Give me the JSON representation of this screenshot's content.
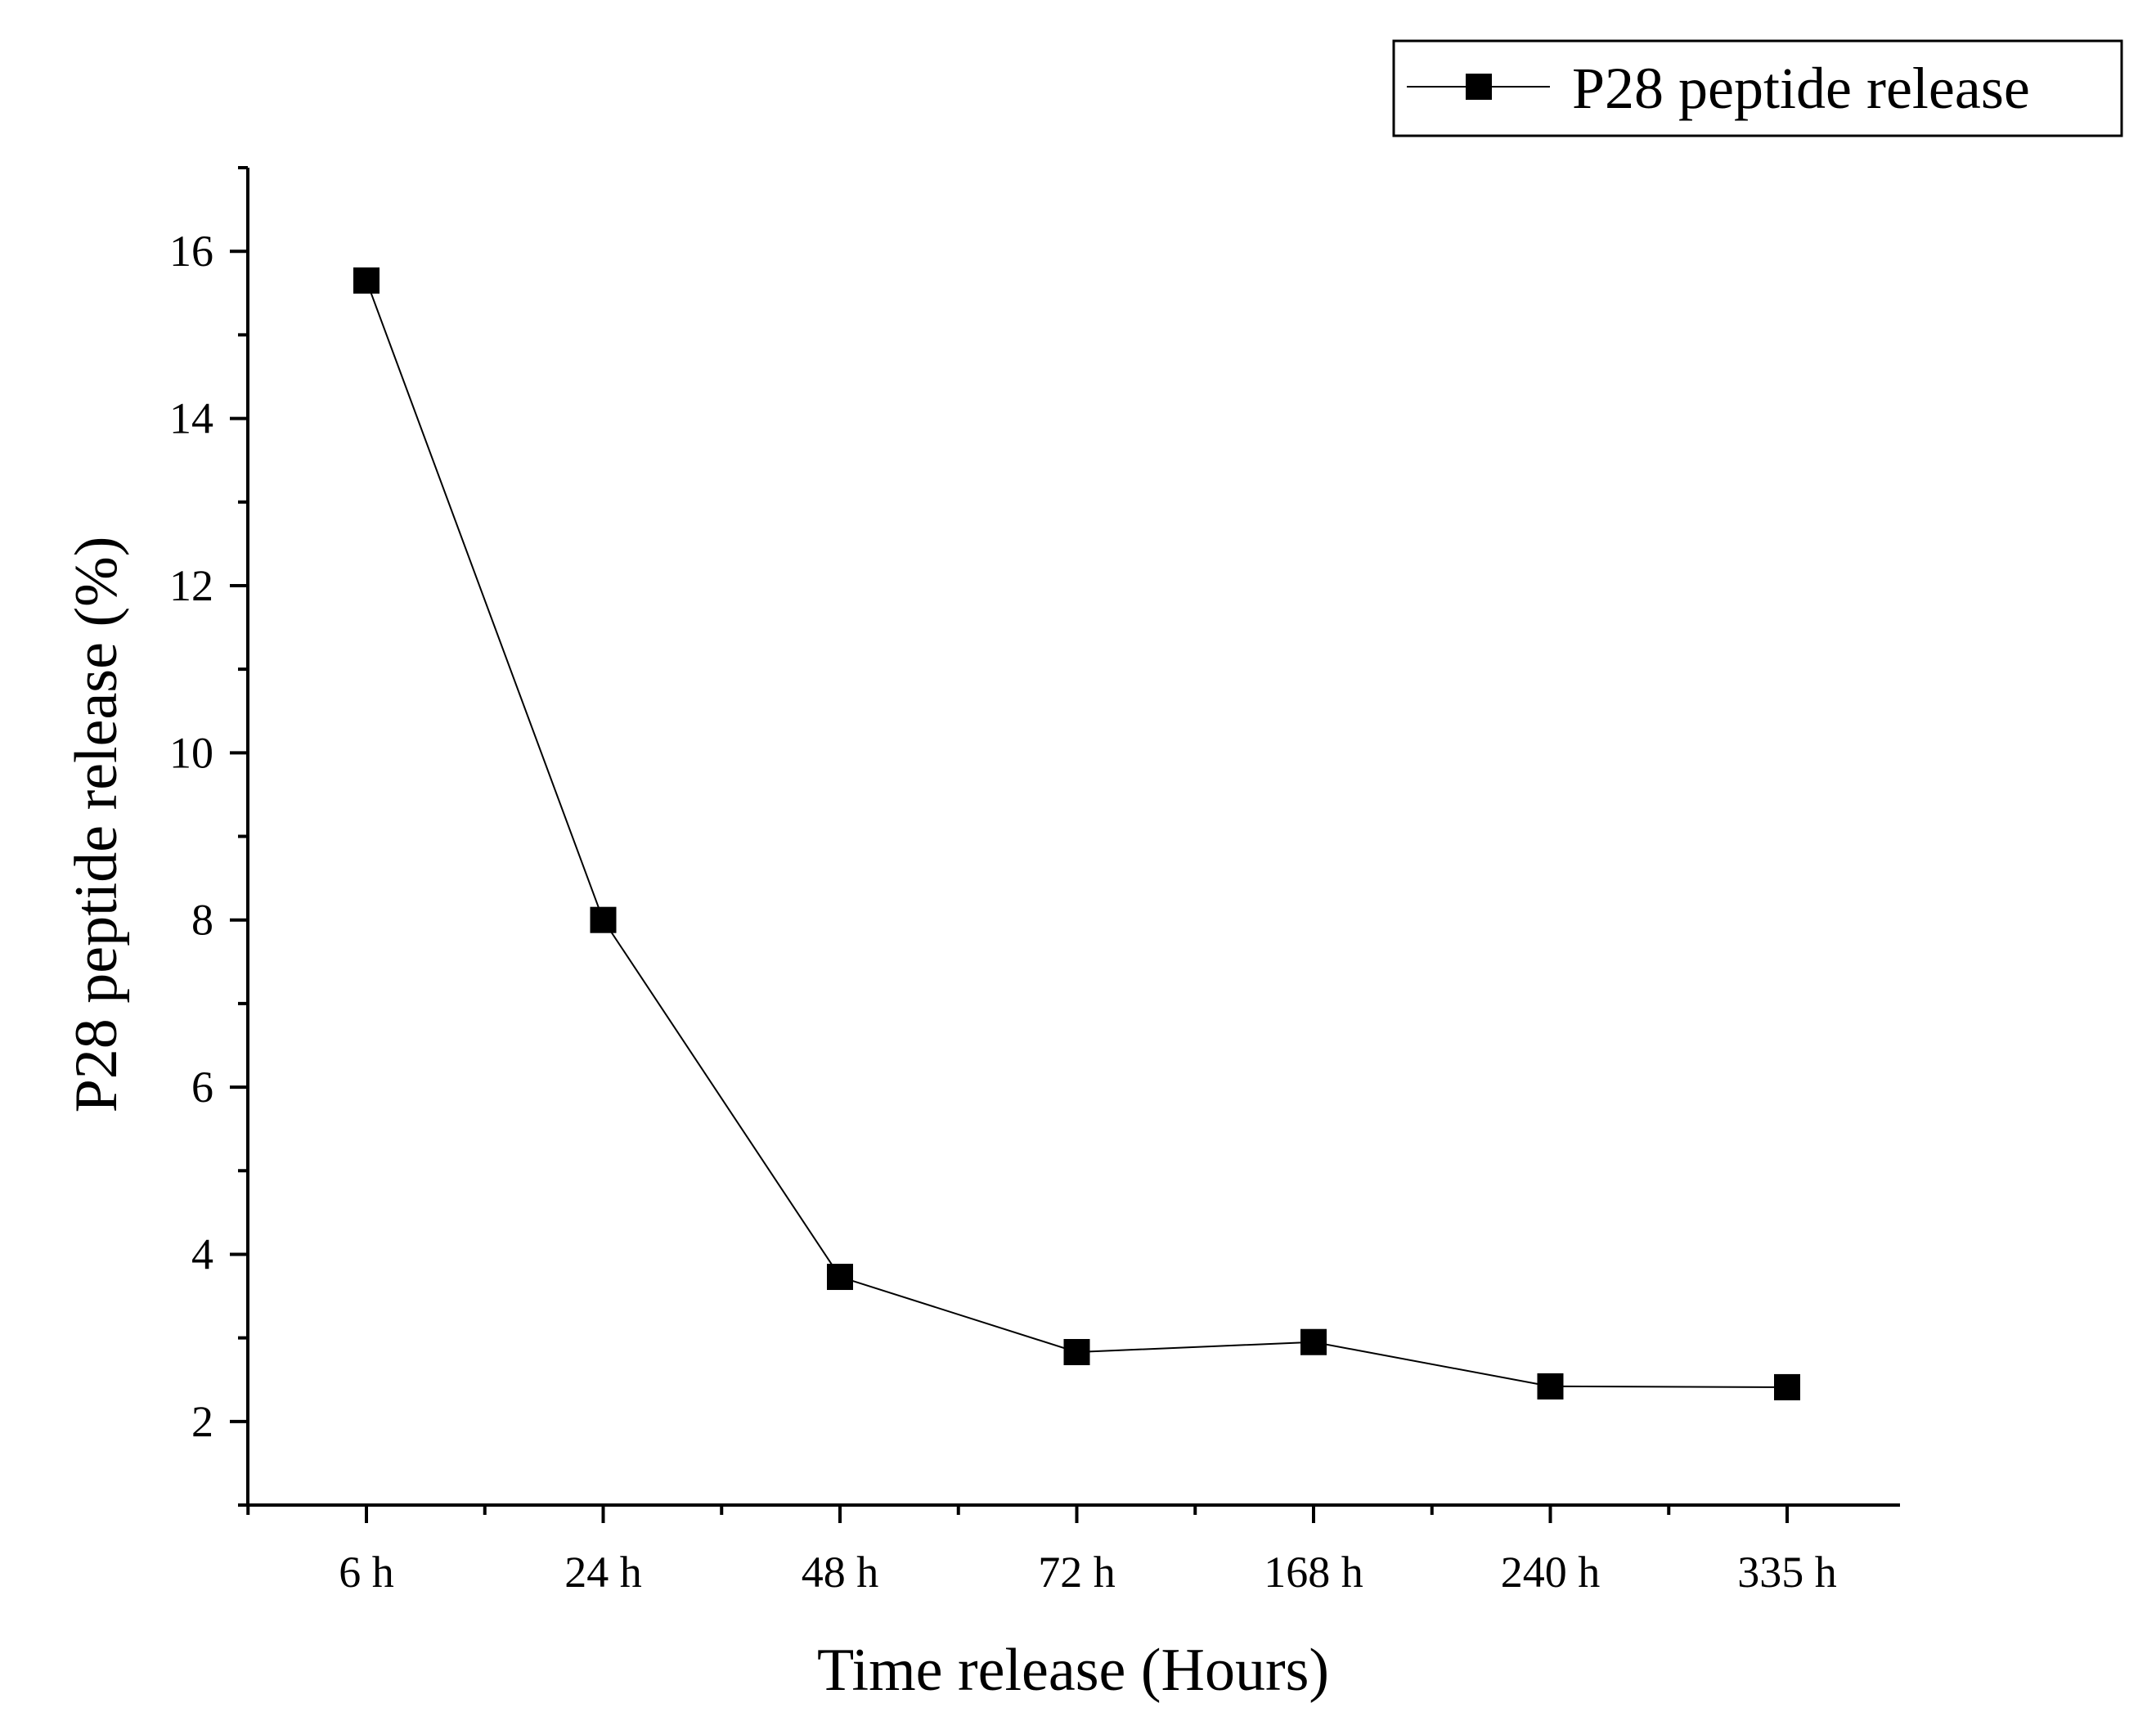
{
  "chart_data": {
    "type": "line",
    "categories": [
      "6 h",
      "24 h",
      "48 h",
      "72 h",
      "168 h",
      "240 h",
      "335 h"
    ],
    "series": [
      {
        "name": "P28 peptide release",
        "values": [
          15.65,
          8.0,
          3.73,
          2.83,
          2.95,
          2.42,
          2.41
        ],
        "marker": "square",
        "color": "#000000"
      }
    ],
    "title": "",
    "xlabel": "Time release (Hours)",
    "ylabel": "P28 peptide release (%)",
    "ylim": [
      1,
      17
    ],
    "yticks": [
      2,
      4,
      6,
      8,
      10,
      12,
      14,
      16
    ],
    "grid": false,
    "legend_position": "top-right"
  }
}
